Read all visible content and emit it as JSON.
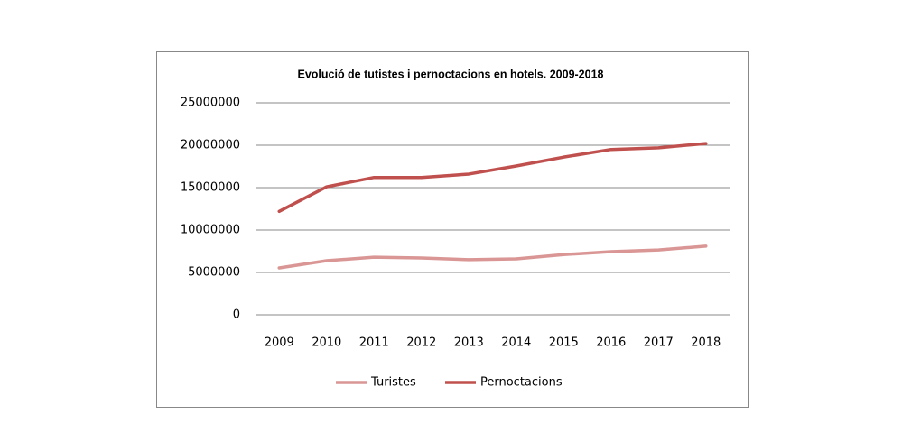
{
  "chart_data": {
    "type": "line",
    "title": "Evolució de tutistes i pernoctacions  en hotels. 2009-2018",
    "categories": [
      "2009",
      "2010",
      "2011",
      "2012",
      "2013",
      "2014",
      "2015",
      "2016",
      "2017",
      "2018"
    ],
    "series": [
      {
        "name": "Turistes",
        "color": "#d99694",
        "values": [
          5530000,
          6380000,
          6800000,
          6700000,
          6500000,
          6600000,
          7100000,
          7450000,
          7650000,
          8100000
        ]
      },
      {
        "name": "Pernoctacions",
        "color": "#c0504d",
        "values": [
          12200000,
          15100000,
          16200000,
          16200000,
          16600000,
          17550000,
          18600000,
          19500000,
          19700000,
          20200000
        ]
      }
    ],
    "ylim": [
      0,
      25000000
    ],
    "yticks": [
      0,
      5000000,
      10000000,
      15000000,
      20000000,
      25000000
    ],
    "grid": true,
    "legend": "bottom"
  }
}
